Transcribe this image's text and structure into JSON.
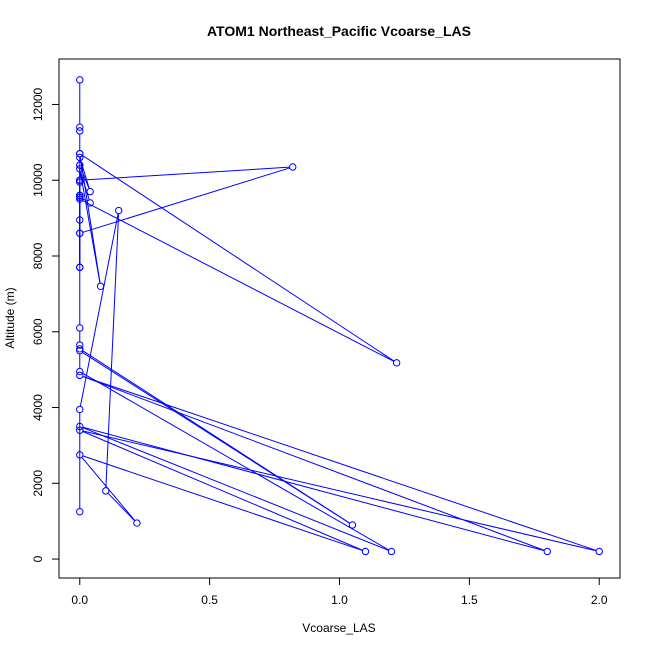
{
  "chart_data": {
    "type": "line",
    "title": "ATOM1 Northeast_Pacific Vcoarse_LAS",
    "xlabel": "Vcoarse_LAS",
    "ylabel": "Altitude (m)",
    "xlim": [
      -0.08,
      2.08
    ],
    "ylim": [
      -500,
      13200
    ],
    "xticks": [
      0,
      0.5,
      1,
      1.5,
      2
    ],
    "xtick_labels": [
      "0.0",
      "0.5",
      "1.0",
      "1.5",
      "2.0"
    ],
    "yticks": [
      0,
      2000,
      4000,
      6000,
      8000,
      10000,
      12000
    ],
    "ytick_labels": [
      "0",
      "2000",
      "4000",
      "6000",
      "8000",
      "10000",
      "12000"
    ],
    "grid": false,
    "series_color": "#0000ff",
    "series": [
      {
        "markers": "open-circle",
        "x": [
          0.0,
          0.0,
          0.0,
          0.0,
          0.0,
          0.0,
          0.0,
          0.0,
          0.0,
          0.0,
          0.0,
          0.0,
          0.0,
          0.82,
          0.0,
          0.0,
          0.04,
          0.0,
          0.0,
          0.0,
          0.0,
          0.04,
          0.0,
          0.08,
          0.0,
          1.22,
          0.0,
          0.0,
          0.0,
          0.0,
          1.05,
          0.0,
          0.0,
          1.2,
          0.0,
          1.8,
          0.0,
          2.0,
          0.0,
          1.1,
          0.0,
          0.22,
          0.1,
          0.15,
          0.0,
          0.0
        ],
        "y": [
          12650,
          11400,
          11300,
          10700,
          10400,
          10000,
          9950,
          9600,
          9550,
          8950,
          8600,
          7700,
          10000,
          10350,
          8600,
          10400,
          9700,
          10600,
          9600,
          7700,
          9550,
          9400,
          10300,
          7200,
          10700,
          5180,
          9500,
          6100,
          5650,
          5550,
          900,
          5500,
          4950,
          200,
          3500,
          200,
          4850,
          200,
          3400,
          200,
          2750,
          950,
          1800,
          9200,
          3950,
          1250
        ]
      }
    ]
  }
}
